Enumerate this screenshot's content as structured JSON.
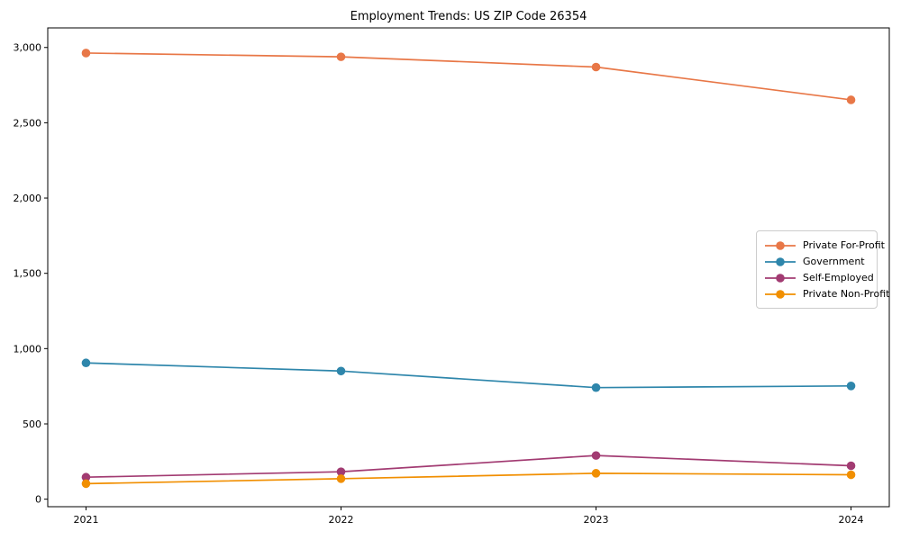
{
  "chart_data": {
    "type": "line",
    "title": "Employment Trends: US ZIP Code 26354",
    "x": [
      2021,
      2022,
      2023,
      2024
    ],
    "x_tick_labels": [
      "2021",
      "2022",
      "2023",
      "2024"
    ],
    "series": [
      {
        "name": "Private For-Profit",
        "color": "#e87747",
        "values": [
          2963,
          2938,
          2870,
          2652
        ]
      },
      {
        "name": "Government",
        "color": "#2e86ab",
        "values": [
          905,
          851,
          741,
          752
        ]
      },
      {
        "name": "Self-Employed",
        "color": "#a23b72",
        "values": [
          146,
          182,
          290,
          222
        ]
      },
      {
        "name": "Private Non-Profit",
        "color": "#f18f01",
        "values": [
          103,
          136,
          172,
          162
        ]
      }
    ],
    "yticks": [
      0,
      500,
      1000,
      1500,
      2000,
      2500,
      3000
    ],
    "y_tick_labels": [
      "0",
      "500",
      "1,000",
      "1,500",
      "2,000",
      "2,500",
      "3,000"
    ],
    "ylim": [
      -50,
      3130
    ],
    "xlim": [
      2020.85,
      2024.15
    ],
    "grid": false,
    "legend_position": "right-center",
    "axis_color": "#000000",
    "background_color": "#ffffff",
    "xlabel": "",
    "ylabel": ""
  }
}
